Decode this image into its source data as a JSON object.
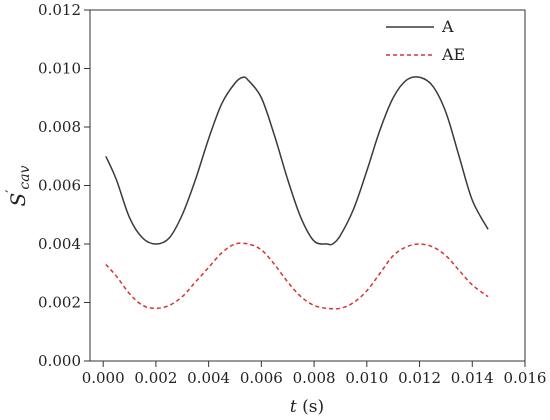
{
  "chart_data": {
    "type": "line",
    "title": "",
    "xlabel": {
      "italic": "t",
      "rest": " (s)"
    },
    "ylabel": {
      "base": "S",
      "prime": "′",
      "sub": "cav"
    },
    "xlim": [
      -0.0005,
      0.016
    ],
    "ylim": [
      0.0,
      0.012
    ],
    "xticks": [
      "0.000",
      "0.002",
      "0.004",
      "0.006",
      "0.008",
      "0.010",
      "0.012",
      "0.014",
      "0.016"
    ],
    "xtick_values": [
      0.0,
      0.002,
      0.004,
      0.006,
      0.008,
      0.01,
      0.012,
      0.014,
      0.016
    ],
    "yticks": [
      "0.000",
      "0.002",
      "0.004",
      "0.006",
      "0.008",
      "0.010",
      "0.012"
    ],
    "ytick_values": [
      0.0,
      0.002,
      0.004,
      0.006,
      0.008,
      0.01,
      0.012
    ],
    "grid": false,
    "legend_position": "top-right",
    "series": [
      {
        "name": "A",
        "color": "#3a3a3a",
        "style": "solid",
        "x": [
          0.0001,
          0.0005,
          0.001,
          0.0015,
          0.002,
          0.0025,
          0.003,
          0.0035,
          0.004,
          0.0045,
          0.005,
          0.0053,
          0.0055,
          0.006,
          0.0065,
          0.007,
          0.0075,
          0.008,
          0.0085,
          0.0087,
          0.009,
          0.0095,
          0.01,
          0.0105,
          0.011,
          0.0115,
          0.012,
          0.0125,
          0.013,
          0.0135,
          0.014,
          0.0146
        ],
        "y": [
          0.007,
          0.0062,
          0.0049,
          0.0042,
          0.004,
          0.0042,
          0.005,
          0.0062,
          0.0076,
          0.0088,
          0.0095,
          0.0097,
          0.0096,
          0.009,
          0.0077,
          0.0062,
          0.0049,
          0.0041,
          0.004,
          0.004,
          0.0043,
          0.0052,
          0.0065,
          0.0079,
          0.009,
          0.0096,
          0.0097,
          0.0094,
          0.0085,
          0.007,
          0.0055,
          0.0045
        ]
      },
      {
        "name": "AE",
        "color": "#d93030",
        "style": "dashed",
        "x": [
          0.0001,
          0.0005,
          0.001,
          0.0015,
          0.002,
          0.0025,
          0.003,
          0.0035,
          0.004,
          0.0045,
          0.005,
          0.0055,
          0.006,
          0.0065,
          0.007,
          0.0075,
          0.008,
          0.0085,
          0.009,
          0.0095,
          0.01,
          0.0105,
          0.011,
          0.0115,
          0.012,
          0.0125,
          0.013,
          0.0135,
          0.014,
          0.0146
        ],
        "y": [
          0.0033,
          0.0029,
          0.0023,
          0.0019,
          0.0018,
          0.0019,
          0.0022,
          0.0027,
          0.0032,
          0.0037,
          0.004,
          0.004,
          0.0038,
          0.0033,
          0.0027,
          0.0022,
          0.0019,
          0.0018,
          0.0018,
          0.002,
          0.0024,
          0.003,
          0.0036,
          0.0039,
          0.004,
          0.0039,
          0.0036,
          0.0031,
          0.0026,
          0.0022
        ]
      }
    ]
  }
}
